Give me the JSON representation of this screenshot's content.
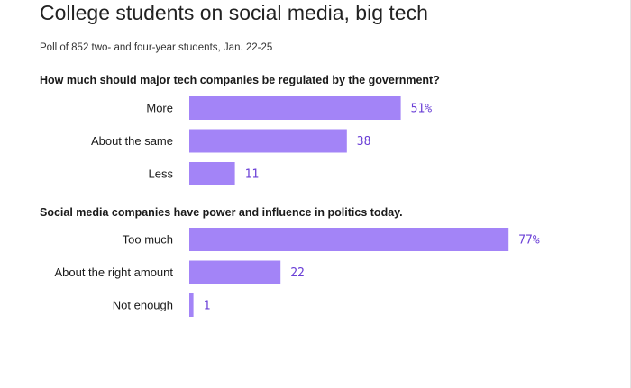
{
  "header": {
    "title": "College students on social media, big tech",
    "subtitle": "Poll of 852 two- and four-year students, Jan. 22-25"
  },
  "colors": {
    "bar": "#a384f7",
    "value_text": "#6a3fd6"
  },
  "chart_data": [
    {
      "type": "bar",
      "orientation": "horizontal",
      "title": "How much should major tech companies be regulated by the government?",
      "categories": [
        "More",
        "About the same",
        "Less"
      ],
      "values": [
        51,
        38,
        11
      ],
      "value_labels": [
        "51%",
        "38",
        "11"
      ],
      "xlim": [
        0,
        100
      ]
    },
    {
      "type": "bar",
      "orientation": "horizontal",
      "title": "Social media companies have power and influence in politics today.",
      "categories": [
        "Too much",
        "About the right amount",
        "Not enough"
      ],
      "values": [
        77,
        22,
        1
      ],
      "value_labels": [
        "77%",
        "22",
        "1"
      ],
      "xlim": [
        0,
        100
      ]
    }
  ]
}
